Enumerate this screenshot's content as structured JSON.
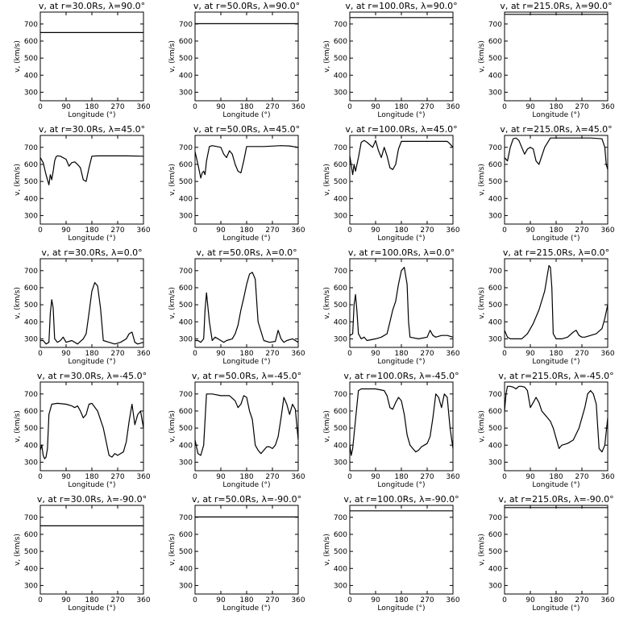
{
  "figure": {
    "rows": 5,
    "cols": 4
  },
  "chart_data": [
    {
      "type": "line",
      "title": "v, at r=30.0Rs, λ=90.0°",
      "xlabel": "Longitude (°)",
      "ylabel": "v, (km/s)",
      "xlim": [
        0,
        360
      ],
      "ylim": [
        250,
        770
      ],
      "xticks": [
        0,
        90,
        180,
        270,
        360
      ],
      "yticks": [
        300,
        400,
        500,
        600,
        700
      ],
      "x": [
        0,
        360
      ],
      "y": [
        650,
        650
      ]
    },
    {
      "type": "line",
      "title": "v, at r=50.0Rs, λ=90.0°",
      "xlabel": "Longitude (°)",
      "ylabel": "v, (km/s)",
      "xlim": [
        0,
        360
      ],
      "ylim": [
        250,
        770
      ],
      "xticks": [
        0,
        90,
        180,
        270,
        360
      ],
      "yticks": [
        300,
        400,
        500,
        600,
        700
      ],
      "x": [
        0,
        360
      ],
      "y": [
        702,
        702
      ]
    },
    {
      "type": "line",
      "title": "v, at r=100.0Rs, λ=90.0°",
      "xlabel": "Longitude (°)",
      "ylabel": "v, (km/s)",
      "xlim": [
        0,
        360
      ],
      "ylim": [
        250,
        770
      ],
      "xticks": [
        0,
        90,
        180,
        270,
        360
      ],
      "yticks": [
        300,
        400,
        500,
        600,
        700
      ],
      "x": [
        0,
        360
      ],
      "y": [
        738,
        738
      ]
    },
    {
      "type": "line",
      "title": "v, at r=215.0Rs, λ=90.0°",
      "xlabel": "Longitude (°)",
      "ylabel": "v, (km/s)",
      "xlim": [
        0,
        360
      ],
      "ylim": [
        250,
        770
      ],
      "xticks": [
        0,
        90,
        180,
        270,
        360
      ],
      "yticks": [
        300,
        400,
        500,
        600,
        700
      ],
      "x": [
        0,
        360
      ],
      "y": [
        757,
        757
      ]
    },
    {
      "type": "line",
      "title": "v, at r=30.0Rs, λ=45.0°",
      "xlabel": "Longitude (°)",
      "ylabel": "v, (km/s)",
      "xlim": [
        0,
        360
      ],
      "ylim": [
        250,
        770
      ],
      "xticks": [
        0,
        90,
        180,
        270,
        360
      ],
      "yticks": [
        300,
        400,
        500,
        600,
        700
      ],
      "x": [
        0,
        10,
        20,
        30,
        35,
        40,
        45,
        50,
        55,
        60,
        70,
        90,
        100,
        110,
        120,
        130,
        140,
        150,
        160,
        170,
        180,
        200,
        240,
        300,
        360
      ],
      "y": [
        640,
        610,
        540,
        480,
        540,
        510,
        560,
        620,
        645,
        650,
        648,
        630,
        590,
        610,
        615,
        600,
        580,
        510,
        500,
        580,
        648,
        650,
        650,
        650,
        648
      ]
    },
    {
      "type": "line",
      "title": "v, at r=50.0Rs, λ=45.0°",
      "xlabel": "Longitude (°)",
      "ylabel": "v, (km/s)",
      "xlim": [
        0,
        360
      ],
      "ylim": [
        250,
        770
      ],
      "xticks": [
        0,
        90,
        180,
        270,
        360
      ],
      "yticks": [
        300,
        400,
        500,
        600,
        700
      ],
      "x": [
        0,
        10,
        20,
        25,
        30,
        35,
        40,
        50,
        60,
        90,
        100,
        110,
        120,
        130,
        140,
        150,
        160,
        170,
        180,
        200,
        240,
        300,
        330,
        360
      ],
      "y": [
        675,
        600,
        520,
        550,
        560,
        540,
        620,
        705,
        710,
        700,
        660,
        640,
        680,
        660,
        600,
        560,
        550,
        620,
        705,
        705,
        705,
        710,
        708,
        700
      ]
    },
    {
      "type": "line",
      "title": "v, at r=100.0Rs, λ=45.0°",
      "xlabel": "Longitude (°)",
      "ylabel": "v, (km/s)",
      "xlim": [
        0,
        360
      ],
      "ylim": [
        250,
        770
      ],
      "xticks": [
        0,
        90,
        180,
        270,
        360
      ],
      "yticks": [
        300,
        400,
        500,
        600,
        700
      ],
      "x": [
        0,
        10,
        15,
        20,
        30,
        40,
        50,
        60,
        80,
        90,
        100,
        110,
        120,
        130,
        140,
        150,
        160,
        170,
        180,
        240,
        300,
        340,
        350,
        360
      ],
      "y": [
        650,
        540,
        600,
        560,
        640,
        730,
        740,
        730,
        700,
        740,
        680,
        640,
        700,
        650,
        580,
        570,
        600,
        690,
        735,
        735,
        735,
        735,
        720,
        700
      ]
    },
    {
      "type": "line",
      "title": "v, at r=215.0Rs, λ=45.0°",
      "xlabel": "Longitude (°)",
      "ylabel": "v, (km/s)",
      "xlim": [
        0,
        360
      ],
      "ylim": [
        250,
        770
      ],
      "xticks": [
        0,
        90,
        180,
        270,
        360
      ],
      "yticks": [
        300,
        400,
        500,
        600,
        700
      ],
      "x": [
        0,
        10,
        20,
        30,
        40,
        50,
        60,
        70,
        80,
        90,
        100,
        110,
        120,
        140,
        160,
        200,
        250,
        300,
        340,
        350,
        355,
        360
      ],
      "y": [
        640,
        620,
        700,
        750,
        755,
        740,
        700,
        660,
        690,
        700,
        690,
        620,
        600,
        700,
        755,
        755,
        755,
        755,
        750,
        700,
        600,
        570
      ]
    },
    {
      "type": "line",
      "title": "v, at r=30.0Rs, λ=0.0°",
      "xlabel": "Longitude (°)",
      "ylabel": "v, (km/s)",
      "xlim": [
        0,
        360
      ],
      "ylim": [
        250,
        770
      ],
      "xticks": [
        0,
        90,
        180,
        270,
        360
      ],
      "yticks": [
        300,
        400,
        500,
        600,
        700
      ],
      "x": [
        0,
        10,
        20,
        30,
        35,
        40,
        45,
        50,
        60,
        70,
        80,
        90,
        110,
        130,
        150,
        160,
        170,
        180,
        190,
        200,
        210,
        220,
        240,
        260,
        280,
        300,
        310,
        320,
        330,
        340,
        360
      ],
      "y": [
        290,
        290,
        270,
        280,
        450,
        530,
        480,
        300,
        280,
        290,
        310,
        280,
        290,
        270,
        300,
        330,
        450,
        580,
        630,
        610,
        480,
        290,
        280,
        270,
        280,
        300,
        330,
        340,
        280,
        270,
        280
      ]
    },
    {
      "type": "line",
      "title": "v, at r=50.0Rs, λ=0.0°",
      "xlabel": "Longitude (°)",
      "ylabel": "v, (km/s)",
      "xlim": [
        0,
        360
      ],
      "ylim": [
        250,
        770
      ],
      "xticks": [
        0,
        90,
        180,
        270,
        360
      ],
      "yticks": [
        300,
        400,
        500,
        600,
        700
      ],
      "x": [
        0,
        10,
        20,
        30,
        35,
        40,
        50,
        60,
        70,
        90,
        100,
        110,
        130,
        140,
        150,
        160,
        170,
        180,
        190,
        200,
        210,
        220,
        240,
        260,
        280,
        290,
        300,
        310,
        320,
        340,
        360
      ],
      "y": [
        290,
        290,
        280,
        300,
        470,
        570,
        400,
        290,
        310,
        290,
        280,
        290,
        300,
        330,
        380,
        470,
        540,
        620,
        680,
        690,
        650,
        400,
        290,
        280,
        285,
        350,
        300,
        280,
        290,
        300,
        280
      ]
    },
    {
      "type": "line",
      "title": "v, at r=100.0Rs, λ=0.0°",
      "xlabel": "Longitude (°)",
      "ylabel": "v, (km/s)",
      "xlim": [
        0,
        360
      ],
      "ylim": [
        250,
        770
      ],
      "xticks": [
        0,
        90,
        180,
        270,
        360
      ],
      "yticks": [
        300,
        400,
        500,
        600,
        700
      ],
      "x": [
        0,
        10,
        15,
        20,
        25,
        30,
        40,
        50,
        60,
        90,
        110,
        130,
        140,
        150,
        160,
        170,
        180,
        190,
        200,
        205,
        210,
        240,
        270,
        280,
        290,
        300,
        320,
        340,
        360
      ],
      "y": [
        320,
        330,
        500,
        560,
        460,
        330,
        300,
        310,
        290,
        300,
        310,
        330,
        400,
        470,
        520,
        620,
        700,
        720,
        620,
        400,
        310,
        300,
        310,
        350,
        320,
        310,
        320,
        320,
        310
      ]
    },
    {
      "type": "line",
      "title": "v, at r=215.0Rs, λ=0.0°",
      "xlabel": "Longitude (°)",
      "ylabel": "v, (km/s)",
      "xlim": [
        0,
        360
      ],
      "ylim": [
        250,
        770
      ],
      "xticks": [
        0,
        90,
        180,
        270,
        360
      ],
      "yticks": [
        300,
        400,
        500,
        600,
        700
      ],
      "x": [
        0,
        10,
        20,
        40,
        60,
        80,
        100,
        120,
        140,
        150,
        155,
        160,
        165,
        170,
        180,
        200,
        220,
        240,
        250,
        260,
        270,
        280,
        300,
        320,
        340,
        350,
        360
      ],
      "y": [
        350,
        310,
        300,
        300,
        300,
        330,
        390,
        470,
        580,
        680,
        730,
        720,
        600,
        330,
        300,
        300,
        310,
        340,
        350,
        320,
        310,
        310,
        320,
        330,
        360,
        420,
        500
      ]
    },
    {
      "type": "line",
      "title": "v, at r=30.0Rs, λ=-45.0°",
      "xlabel": "Longitude (°)",
      "ylabel": "v, (km/s)",
      "xlim": [
        0,
        360
      ],
      "ylim": [
        250,
        770
      ],
      "xticks": [
        0,
        90,
        180,
        270,
        360
      ],
      "yticks": [
        300,
        400,
        500,
        600,
        700
      ],
      "x": [
        0,
        5,
        10,
        15,
        20,
        25,
        30,
        40,
        60,
        90,
        110,
        120,
        130,
        140,
        150,
        160,
        170,
        180,
        200,
        220,
        240,
        250,
        260,
        270,
        280,
        290,
        300,
        310,
        320,
        330,
        340,
        350,
        360
      ],
      "y": [
        370,
        400,
        340,
        320,
        330,
        380,
        580,
        640,
        645,
        640,
        630,
        620,
        630,
        600,
        560,
        580,
        640,
        645,
        600,
        500,
        340,
        330,
        350,
        340,
        350,
        360,
        420,
        540,
        640,
        520,
        580,
        600,
        500
      ]
    },
    {
      "type": "line",
      "title": "v, at r=50.0Rs, λ=-45.0°",
      "xlabel": "Longitude (°)",
      "ylabel": "v, (km/s)",
      "xlim": [
        0,
        360
      ],
      "ylim": [
        250,
        770
      ],
      "xticks": [
        0,
        90,
        180,
        270,
        360
      ],
      "yticks": [
        300,
        400,
        500,
        600,
        700
      ],
      "x": [
        0,
        10,
        20,
        30,
        40,
        60,
        90,
        120,
        140,
        150,
        160,
        170,
        180,
        190,
        200,
        210,
        220,
        230,
        240,
        250,
        260,
        270,
        280,
        290,
        300,
        310,
        320,
        330,
        340,
        350,
        360
      ],
      "y": [
        430,
        350,
        340,
        400,
        700,
        700,
        690,
        690,
        660,
        620,
        640,
        690,
        680,
        600,
        550,
        400,
        370,
        350,
        370,
        390,
        390,
        380,
        400,
        450,
        560,
        680,
        640,
        580,
        640,
        610,
        430
      ]
    },
    {
      "type": "line",
      "title": "v, at r=100.0Rs, λ=-45.0°",
      "xlabel": "Longitude (°)",
      "ylabel": "v, (km/s)",
      "xlim": [
        0,
        360
      ],
      "ylim": [
        250,
        770
      ],
      "xticks": [
        0,
        90,
        180,
        270,
        360
      ],
      "yticks": [
        300,
        400,
        500,
        600,
        700
      ],
      "x": [
        0,
        5,
        10,
        20,
        30,
        40,
        60,
        90,
        120,
        130,
        140,
        150,
        160,
        170,
        180,
        190,
        200,
        210,
        220,
        230,
        240,
        250,
        260,
        270,
        280,
        290,
        300,
        310,
        320,
        330,
        340,
        350,
        360
      ],
      "y": [
        400,
        340,
        380,
        550,
        720,
        730,
        730,
        730,
        720,
        690,
        620,
        610,
        650,
        680,
        660,
        580,
        460,
        400,
        380,
        360,
        370,
        390,
        400,
        410,
        450,
        560,
        700,
        680,
        620,
        700,
        680,
        500,
        380
      ]
    },
    {
      "type": "line",
      "title": "v, at r=215.0Rs, λ=-45.0°",
      "xlabel": "Longitude (°)",
      "ylabel": "v, (km/s)",
      "xlim": [
        0,
        360
      ],
      "ylim": [
        250,
        770
      ],
      "xticks": [
        0,
        90,
        180,
        270,
        360
      ],
      "yticks": [
        300,
        400,
        500,
        600,
        700
      ],
      "x": [
        0,
        5,
        10,
        20,
        30,
        40,
        50,
        60,
        70,
        80,
        90,
        100,
        110,
        120,
        130,
        140,
        150,
        160,
        170,
        180,
        190,
        200,
        220,
        240,
        260,
        280,
        290,
        300,
        310,
        320,
        330,
        340,
        350,
        360
      ],
      "y": [
        600,
        700,
        745,
        745,
        740,
        730,
        745,
        745,
        740,
        720,
        620,
        650,
        680,
        650,
        600,
        580,
        560,
        540,
        500,
        440,
        380,
        400,
        410,
        430,
        500,
        620,
        700,
        720,
        700,
        640,
        380,
        360,
        400,
        560
      ]
    },
    {
      "type": "line",
      "title": "v, at r=30.0Rs, λ=-90.0°",
      "xlabel": "Longitude (°)",
      "ylabel": "v, (km/s)",
      "xlim": [
        0,
        360
      ],
      "ylim": [
        250,
        770
      ],
      "xticks": [
        0,
        90,
        180,
        270,
        360
      ],
      "yticks": [
        300,
        400,
        500,
        600,
        700
      ],
      "x": [
        0,
        360
      ],
      "y": [
        650,
        650
      ]
    },
    {
      "type": "line",
      "title": "v, at r=50.0Rs, λ=-90.0°",
      "xlabel": "Longitude (°)",
      "ylabel": "v, (km/s)",
      "xlim": [
        0,
        360
      ],
      "ylim": [
        250,
        770
      ],
      "xticks": [
        0,
        90,
        180,
        270,
        360
      ],
      "yticks": [
        300,
        400,
        500,
        600,
        700
      ],
      "x": [
        0,
        360
      ],
      "y": [
        702,
        702
      ]
    },
    {
      "type": "line",
      "title": "v, at r=100.0Rs, λ=-90.0°",
      "xlabel": "Longitude (°)",
      "ylabel": "v, (km/s)",
      "xlim": [
        0,
        360
      ],
      "ylim": [
        250,
        770
      ],
      "xticks": [
        0,
        90,
        180,
        270,
        360
      ],
      "yticks": [
        300,
        400,
        500,
        600,
        700
      ],
      "x": [
        0,
        360
      ],
      "y": [
        738,
        738
      ]
    },
    {
      "type": "line",
      "title": "v, at r=215.0Rs, λ=-90.0°",
      "xlabel": "Longitude (°)",
      "ylabel": "v, (km/s)",
      "xlim": [
        0,
        360
      ],
      "ylim": [
        250,
        770
      ],
      "xticks": [
        0,
        90,
        180,
        270,
        360
      ],
      "yticks": [
        300,
        400,
        500,
        600,
        700
      ],
      "x": [
        0,
        360
      ],
      "y": [
        757,
        757
      ]
    }
  ]
}
